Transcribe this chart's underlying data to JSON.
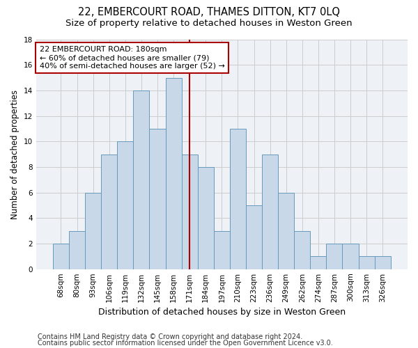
{
  "title": "22, EMBERCOURT ROAD, THAMES DITTON, KT7 0LQ",
  "subtitle": "Size of property relative to detached houses in Weston Green",
  "xlabel": "Distribution of detached houses by size in Weston Green",
  "ylabel": "Number of detached properties",
  "categories": [
    "68sqm",
    "80sqm",
    "93sqm",
    "106sqm",
    "119sqm",
    "132sqm",
    "145sqm",
    "158sqm",
    "171sqm",
    "184sqm",
    "197sqm",
    "210sqm",
    "223sqm",
    "236sqm",
    "249sqm",
    "262sqm",
    "274sqm",
    "287sqm",
    "300sqm",
    "313sqm",
    "326sqm"
  ],
  "values": [
    2,
    3,
    6,
    9,
    10,
    14,
    11,
    15,
    9,
    8,
    3,
    11,
    5,
    9,
    6,
    3,
    1,
    2,
    2,
    1,
    1
  ],
  "bar_color": "#c8d8e8",
  "bar_edgecolor": "#6699bb",
  "vline_x_index": 8,
  "vline_color": "#aa0000",
  "annotation_text": "22 EMBERCOURT ROAD: 180sqm\n← 60% of detached houses are smaller (79)\n40% of semi-detached houses are larger (52) →",
  "annotation_box_facecolor": "#ffffff",
  "annotation_box_edgecolor": "#aa0000",
  "ylim": [
    0,
    18
  ],
  "yticks": [
    0,
    2,
    4,
    6,
    8,
    10,
    12,
    14,
    16,
    18
  ],
  "grid_color": "#cccccc",
  "plot_bg_color": "#eef2f7",
  "fig_bg_color": "#ffffff",
  "footer_line1": "Contains HM Land Registry data © Crown copyright and database right 2024.",
  "footer_line2": "Contains public sector information licensed under the Open Government Licence v3.0.",
  "title_fontsize": 10.5,
  "subtitle_fontsize": 9.5,
  "xlabel_fontsize": 9,
  "ylabel_fontsize": 8.5,
  "tick_fontsize": 7.5,
  "annotation_fontsize": 8,
  "footer_fontsize": 7
}
